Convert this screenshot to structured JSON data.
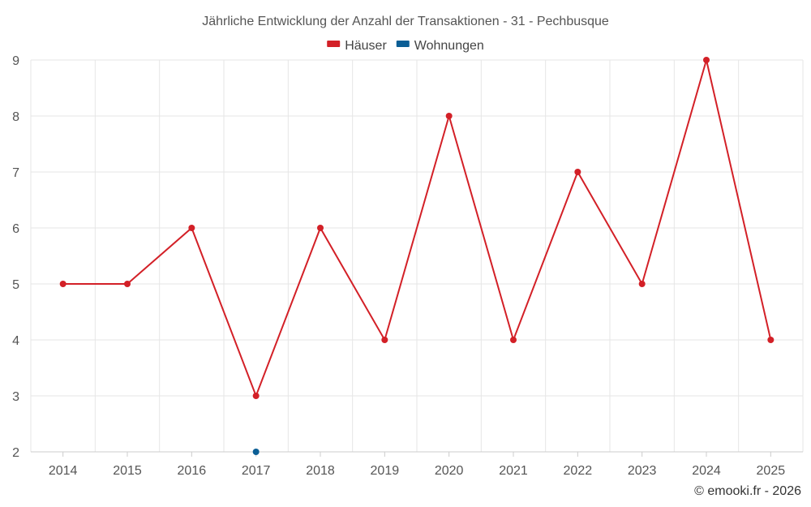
{
  "chart_data": {
    "type": "line",
    "title": "Jährliche Entwicklung der Anzahl der Transaktionen - 31 - Pechbusque",
    "xlabel": "",
    "ylabel": "",
    "categories": [
      "2014",
      "2015",
      "2016",
      "2017",
      "2018",
      "2019",
      "2020",
      "2021",
      "2022",
      "2023",
      "2024",
      "2025"
    ],
    "ylim": [
      2,
      9
    ],
    "yticks": [
      "2",
      "3",
      "4",
      "5",
      "6",
      "7",
      "8",
      "9"
    ],
    "grid": true,
    "legend_position": "top-center",
    "series": [
      {
        "name": "Häuser",
        "color": "#d32027",
        "values": [
          5,
          5,
          6,
          3,
          6,
          4,
          8,
          4,
          7,
          5,
          9,
          4
        ]
      },
      {
        "name": "Wohnungen",
        "color": "#0b5e95",
        "values": [
          null,
          null,
          null,
          2,
          null,
          null,
          null,
          null,
          null,
          null,
          null,
          null
        ]
      }
    ]
  },
  "credit": "© emooki.fr - 2026"
}
